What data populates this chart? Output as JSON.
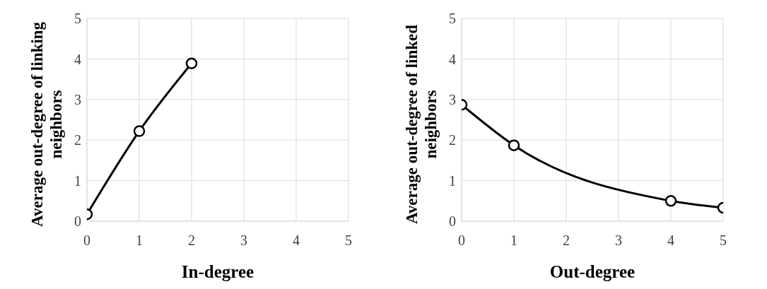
{
  "chart_data": [
    {
      "type": "line",
      "xlabel": "In-degree",
      "ylabel": "Average out-degree of linking neighbors",
      "x": [
        0,
        1,
        2
      ],
      "values": [
        0.17,
        2.22,
        3.89
      ],
      "color": "#000000",
      "xlim": [
        0,
        5
      ],
      "xticks": [
        0,
        1,
        2,
        3,
        4,
        5
      ],
      "ylim": [
        0,
        5
      ],
      "yticks": [
        0,
        1,
        2,
        3,
        4,
        5
      ],
      "grid": true,
      "marker": "circle",
      "line_style": "solid"
    },
    {
      "type": "line",
      "xlabel": "Out-degree",
      "ylabel": "Average out-degree of linked neighbors",
      "x": [
        0,
        1,
        4,
        5
      ],
      "values": [
        2.87,
        1.87,
        0.5,
        0.33
      ],
      "color": "#000000",
      "xlim": [
        0,
        5
      ],
      "xticks": [
        0,
        1,
        2,
        3,
        4,
        5
      ],
      "ylim": [
        0,
        5
      ],
      "yticks": [
        0,
        1,
        2,
        3,
        4,
        5
      ],
      "grid": true,
      "marker": "circle",
      "line_style": "solid"
    }
  ]
}
